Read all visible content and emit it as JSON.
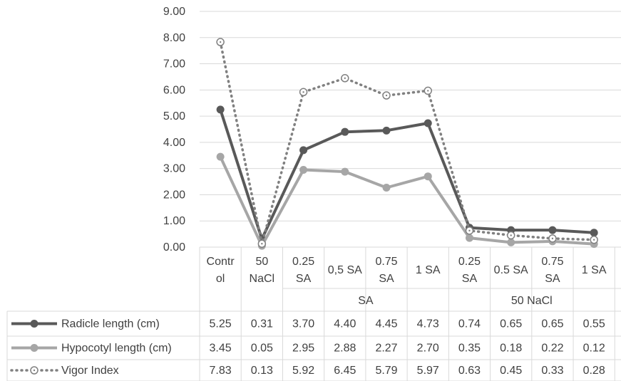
{
  "chart_data": {
    "type": "line",
    "y_ticks": [
      "9.00",
      "8.00",
      "7.00",
      "6.00",
      "5.00",
      "4.00",
      "3.00",
      "2.00",
      "1.00",
      "0.00"
    ],
    "ylim": [
      0,
      9
    ],
    "grid": true,
    "legend": "data-table",
    "categories": [
      {
        "lines": [
          "Contr",
          "ol"
        ],
        "group": ""
      },
      {
        "lines": [
          "50",
          "NaCl"
        ],
        "group": ""
      },
      {
        "lines": [
          "0.25",
          "SA"
        ],
        "group": "SA"
      },
      {
        "lines": [
          "0,5 SA"
        ],
        "group": "SA"
      },
      {
        "lines": [
          "0.75",
          "SA"
        ],
        "group": "SA"
      },
      {
        "lines": [
          "1 SA"
        ],
        "group": "SA"
      },
      {
        "lines": [
          "0.25",
          "SA"
        ],
        "group": "50 NaCl"
      },
      {
        "lines": [
          "0.5 SA"
        ],
        "group": "50 NaCl"
      },
      {
        "lines": [
          "0.75",
          "SA"
        ],
        "group": "50 NaCl"
      },
      {
        "lines": [
          "1 SA"
        ],
        "group": "50 NaCl"
      }
    ],
    "groups": [
      {
        "label": "SA",
        "from": 2,
        "to": 5
      },
      {
        "label": "50 NaCl",
        "from": 6,
        "to": 9
      }
    ],
    "series": [
      {
        "name": "Radicle length (cm)",
        "style": "solid",
        "color": "#595959",
        "values": [
          5.25,
          0.31,
          3.7,
          4.4,
          4.45,
          4.73,
          0.74,
          0.65,
          0.65,
          0.55
        ],
        "labels": [
          "5.25",
          "0.31",
          "3.70",
          "4.40",
          "4.45",
          "4.73",
          "0.74",
          "0.65",
          "0.65",
          "0.55"
        ]
      },
      {
        "name": "Hypocotyl length (cm)",
        "style": "solid",
        "color": "#a6a6a6",
        "values": [
          3.45,
          0.05,
          2.95,
          2.88,
          2.27,
          2.7,
          0.35,
          0.18,
          0.22,
          0.12
        ],
        "labels": [
          "3.45",
          "0.05",
          "2.95",
          "2.88",
          "2.27",
          "2.70",
          "0.35",
          "0.18",
          "0.22",
          "0.12"
        ]
      },
      {
        "name": "Vigor Index",
        "style": "dotted",
        "color": "#808080",
        "values": [
          7.83,
          0.13,
          5.92,
          6.45,
          5.79,
          5.97,
          0.63,
          0.45,
          0.33,
          0.28
        ],
        "labels": [
          "7.83",
          "0.13",
          "5.92",
          "6.45",
          "5.79",
          "5.97",
          "0.63",
          "0.45",
          "0.33",
          "0.28"
        ]
      }
    ]
  }
}
